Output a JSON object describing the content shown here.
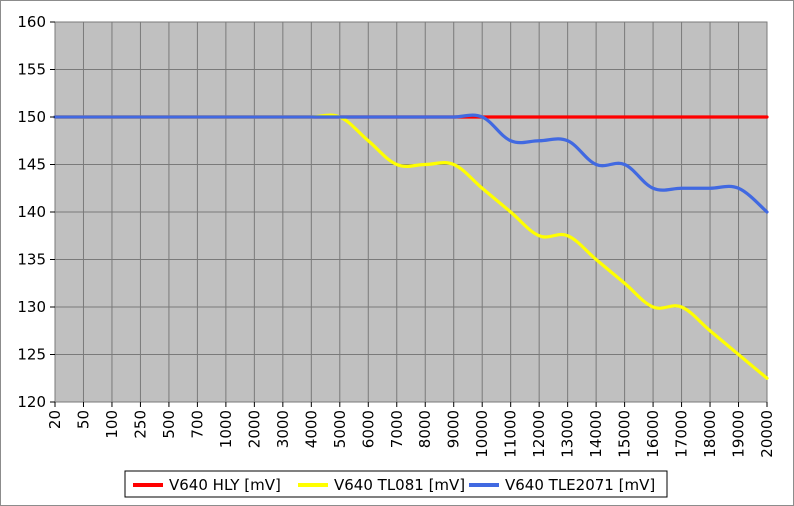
{
  "chart_data": {
    "type": "line",
    "categories": [
      "20",
      "50",
      "100",
      "250",
      "500",
      "700",
      "1000",
      "2000",
      "3000",
      "4000",
      "5000",
      "6000",
      "7000",
      "8000",
      "9000",
      "10000",
      "11000",
      "12000",
      "13000",
      "14000",
      "15000",
      "16000",
      "17000",
      "18000",
      "19000",
      "20000"
    ],
    "ylim": [
      120,
      160
    ],
    "yticks": [
      120,
      125,
      130,
      135,
      140,
      145,
      150,
      155,
      160
    ],
    "grid": true,
    "legend": "bottom",
    "plot_background": "#c0c0c0",
    "series": [
      {
        "name": "V640 HLY [mV]",
        "color": "#ff0000",
        "values": [
          150,
          150,
          150,
          150,
          150,
          150,
          150,
          150,
          150,
          150,
          150,
          150,
          150,
          150,
          150,
          150,
          150,
          150,
          150,
          150,
          150,
          150,
          150,
          150,
          150,
          150
        ]
      },
      {
        "name": "V640 TL081 [mV]",
        "color": "#ffff00",
        "values": [
          150,
          150,
          150,
          150,
          150,
          150,
          150,
          150,
          150,
          150,
          150,
          147.5,
          145,
          145,
          145,
          142.5,
          140,
          137.5,
          137.5,
          135,
          132.5,
          130,
          130,
          127.5,
          125,
          122.5
        ]
      },
      {
        "name": "V640 TLE2071 [mV]",
        "color": "#4169e1",
        "values": [
          150,
          150,
          150,
          150,
          150,
          150,
          150,
          150,
          150,
          150,
          150,
          150,
          150,
          150,
          150,
          150,
          147.5,
          147.5,
          147.5,
          145,
          145,
          142.5,
          142.5,
          142.5,
          142.5,
          140
        ]
      }
    ]
  }
}
